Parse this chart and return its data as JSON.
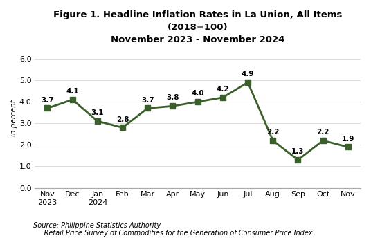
{
  "title_line1": "Figure 1. Headline Inflation Rates in La Union, All Items",
  "title_line2": "(2018=100)",
  "title_line3": "November 2023 - November 2024",
  "months": [
    "Nov\n2023",
    "Dec",
    "Jan\n2024",
    "Feb",
    "Mar",
    "Apr",
    "May",
    "Jun",
    "Jul",
    "Aug",
    "Sep",
    "Oct",
    "Nov"
  ],
  "values": [
    3.7,
    4.1,
    3.1,
    2.8,
    3.7,
    3.8,
    4.0,
    4.2,
    4.9,
    2.2,
    1.3,
    2.2,
    1.9
  ],
  "line_color": "#3a5f2a",
  "marker_color": "#3a5f2a",
  "marker_style": "s",
  "ylabel": "in percent",
  "ylim": [
    0.0,
    6.5
  ],
  "yticks": [
    0.0,
    1.0,
    2.0,
    3.0,
    4.0,
    5.0,
    6.0
  ],
  "ytick_labels": [
    "0.0",
    "1.0",
    "2.0",
    "3.0",
    "4.0",
    "5.0",
    "6.0"
  ],
  "source_line1": "Source: Philippine Statistics Authority",
  "source_line2": "     Retail Price Survey of Commodities for the Generation of Consumer Price Index",
  "bg_color": "#ffffff",
  "data_label_fontsize": 7.5,
  "tick_fontsize": 8,
  "title_fontsize": 9.5,
  "ylabel_fontsize": 7.5,
  "source_fontsize": 7
}
